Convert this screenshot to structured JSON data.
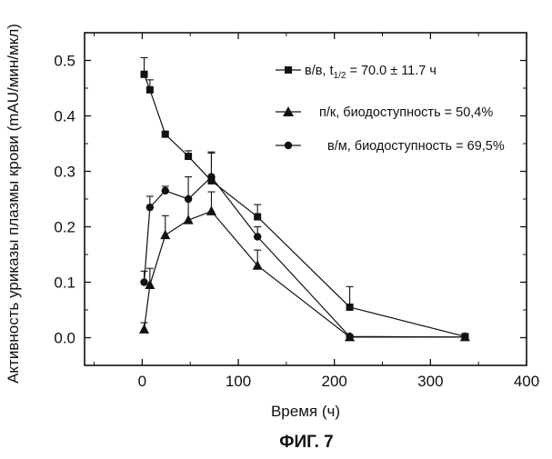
{
  "figure": {
    "caption": "ФИГ. 7"
  },
  "chart_data": {
    "type": "line",
    "xlabel": "Время (ч)",
    "ylabel": "Активность уриказы плазмы крови (mAU/мин/мкл)",
    "xlim": [
      -60,
      400
    ],
    "ylim": [
      -0.05,
      0.55
    ],
    "xticks": [
      0,
      100,
      200,
      300,
      400
    ],
    "yticks": [
      0.0,
      0.1,
      0.2,
      0.3,
      0.4,
      0.5
    ],
    "ytick_labels": [
      "0.0",
      "0.1",
      "0.2",
      "0.3",
      "0.4",
      "0.5"
    ],
    "minor_ticks": true,
    "grid": false,
    "legend_position": "top-right",
    "series": [
      {
        "name_prefix": "в/в, t",
        "name_subscript": "1/2",
        "name_suffix": " = 70.0 ± 11.7  ч",
        "marker": "square",
        "x": [
          2,
          8,
          24,
          48,
          72,
          120,
          216,
          336
        ],
        "y": [
          0.475,
          0.447,
          0.367,
          0.327,
          0.283,
          0.218,
          0.055,
          0.002
        ],
        "error": [
          0.03,
          0.018,
          0.005,
          0.01,
          0.05,
          0.022,
          0.037,
          0.003
        ]
      },
      {
        "name": "п/к, биодоступность = 50,4%",
        "marker": "triangle",
        "x": [
          2,
          8,
          24,
          48,
          72,
          120,
          216,
          336
        ],
        "y": [
          0.015,
          0.095,
          0.185,
          0.212,
          0.228,
          0.13,
          0.001,
          0.001
        ],
        "error": [
          0.012,
          0.03,
          0.035,
          0.04,
          0.035,
          0.028,
          0.003,
          0.002
        ]
      },
      {
        "name": "в/м, биодоступность = 69,5%",
        "marker": "circle",
        "x": [
          2,
          8,
          24,
          48,
          72,
          120,
          216,
          336
        ],
        "y": [
          0.1,
          0.235,
          0.265,
          0.25,
          0.29,
          0.182,
          0.002,
          0.001
        ],
        "error": [
          0.02,
          0.02,
          0.008,
          0.04,
          0.045,
          0.018,
          0.003,
          0.002
        ]
      }
    ]
  }
}
